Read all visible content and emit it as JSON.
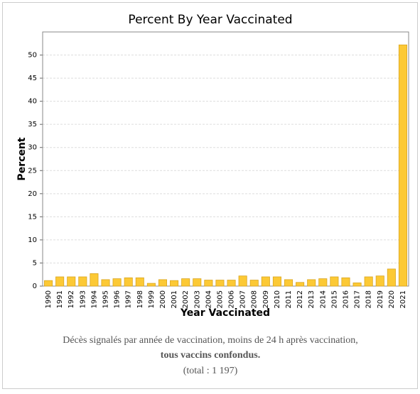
{
  "chart_data": {
    "type": "bar",
    "title": "Percent By Year Vaccinated",
    "x_label": "Year Vaccinated",
    "y_label": "Percent",
    "categories": [
      "1990",
      "1991",
      "1992",
      "1993",
      "1994",
      "1995",
      "1996",
      "1997",
      "1998",
      "1999",
      "2000",
      "2001",
      "2002",
      "2003",
      "2004",
      "2005",
      "2006",
      "2007",
      "2008",
      "2009",
      "2010",
      "2011",
      "2012",
      "2013",
      "2014",
      "2015",
      "2016",
      "2017",
      "2018",
      "2019",
      "2020",
      "2021"
    ],
    "values": [
      1.2,
      2.0,
      2.0,
      2.0,
      2.7,
      1.4,
      1.6,
      1.8,
      1.8,
      0.6,
      1.4,
      1.2,
      1.6,
      1.6,
      1.3,
      1.3,
      1.3,
      2.2,
      1.3,
      2.0,
      2.0,
      1.4,
      0.8,
      1.4,
      1.6,
      2.0,
      1.8,
      0.7,
      2.0,
      2.2,
      3.7,
      52.2
    ],
    "color": "#fcc935",
    "ylim": [
      0,
      55
    ],
    "yticks": [
      0,
      5,
      10,
      15,
      20,
      25,
      30,
      35,
      40,
      45,
      50
    ],
    "grid": true
  },
  "caption": [
    "Décès signalés par année de vaccination, moins de 24 h après vaccination,",
    "tous vaccins confondus.",
    "(total : 1 197)"
  ]
}
